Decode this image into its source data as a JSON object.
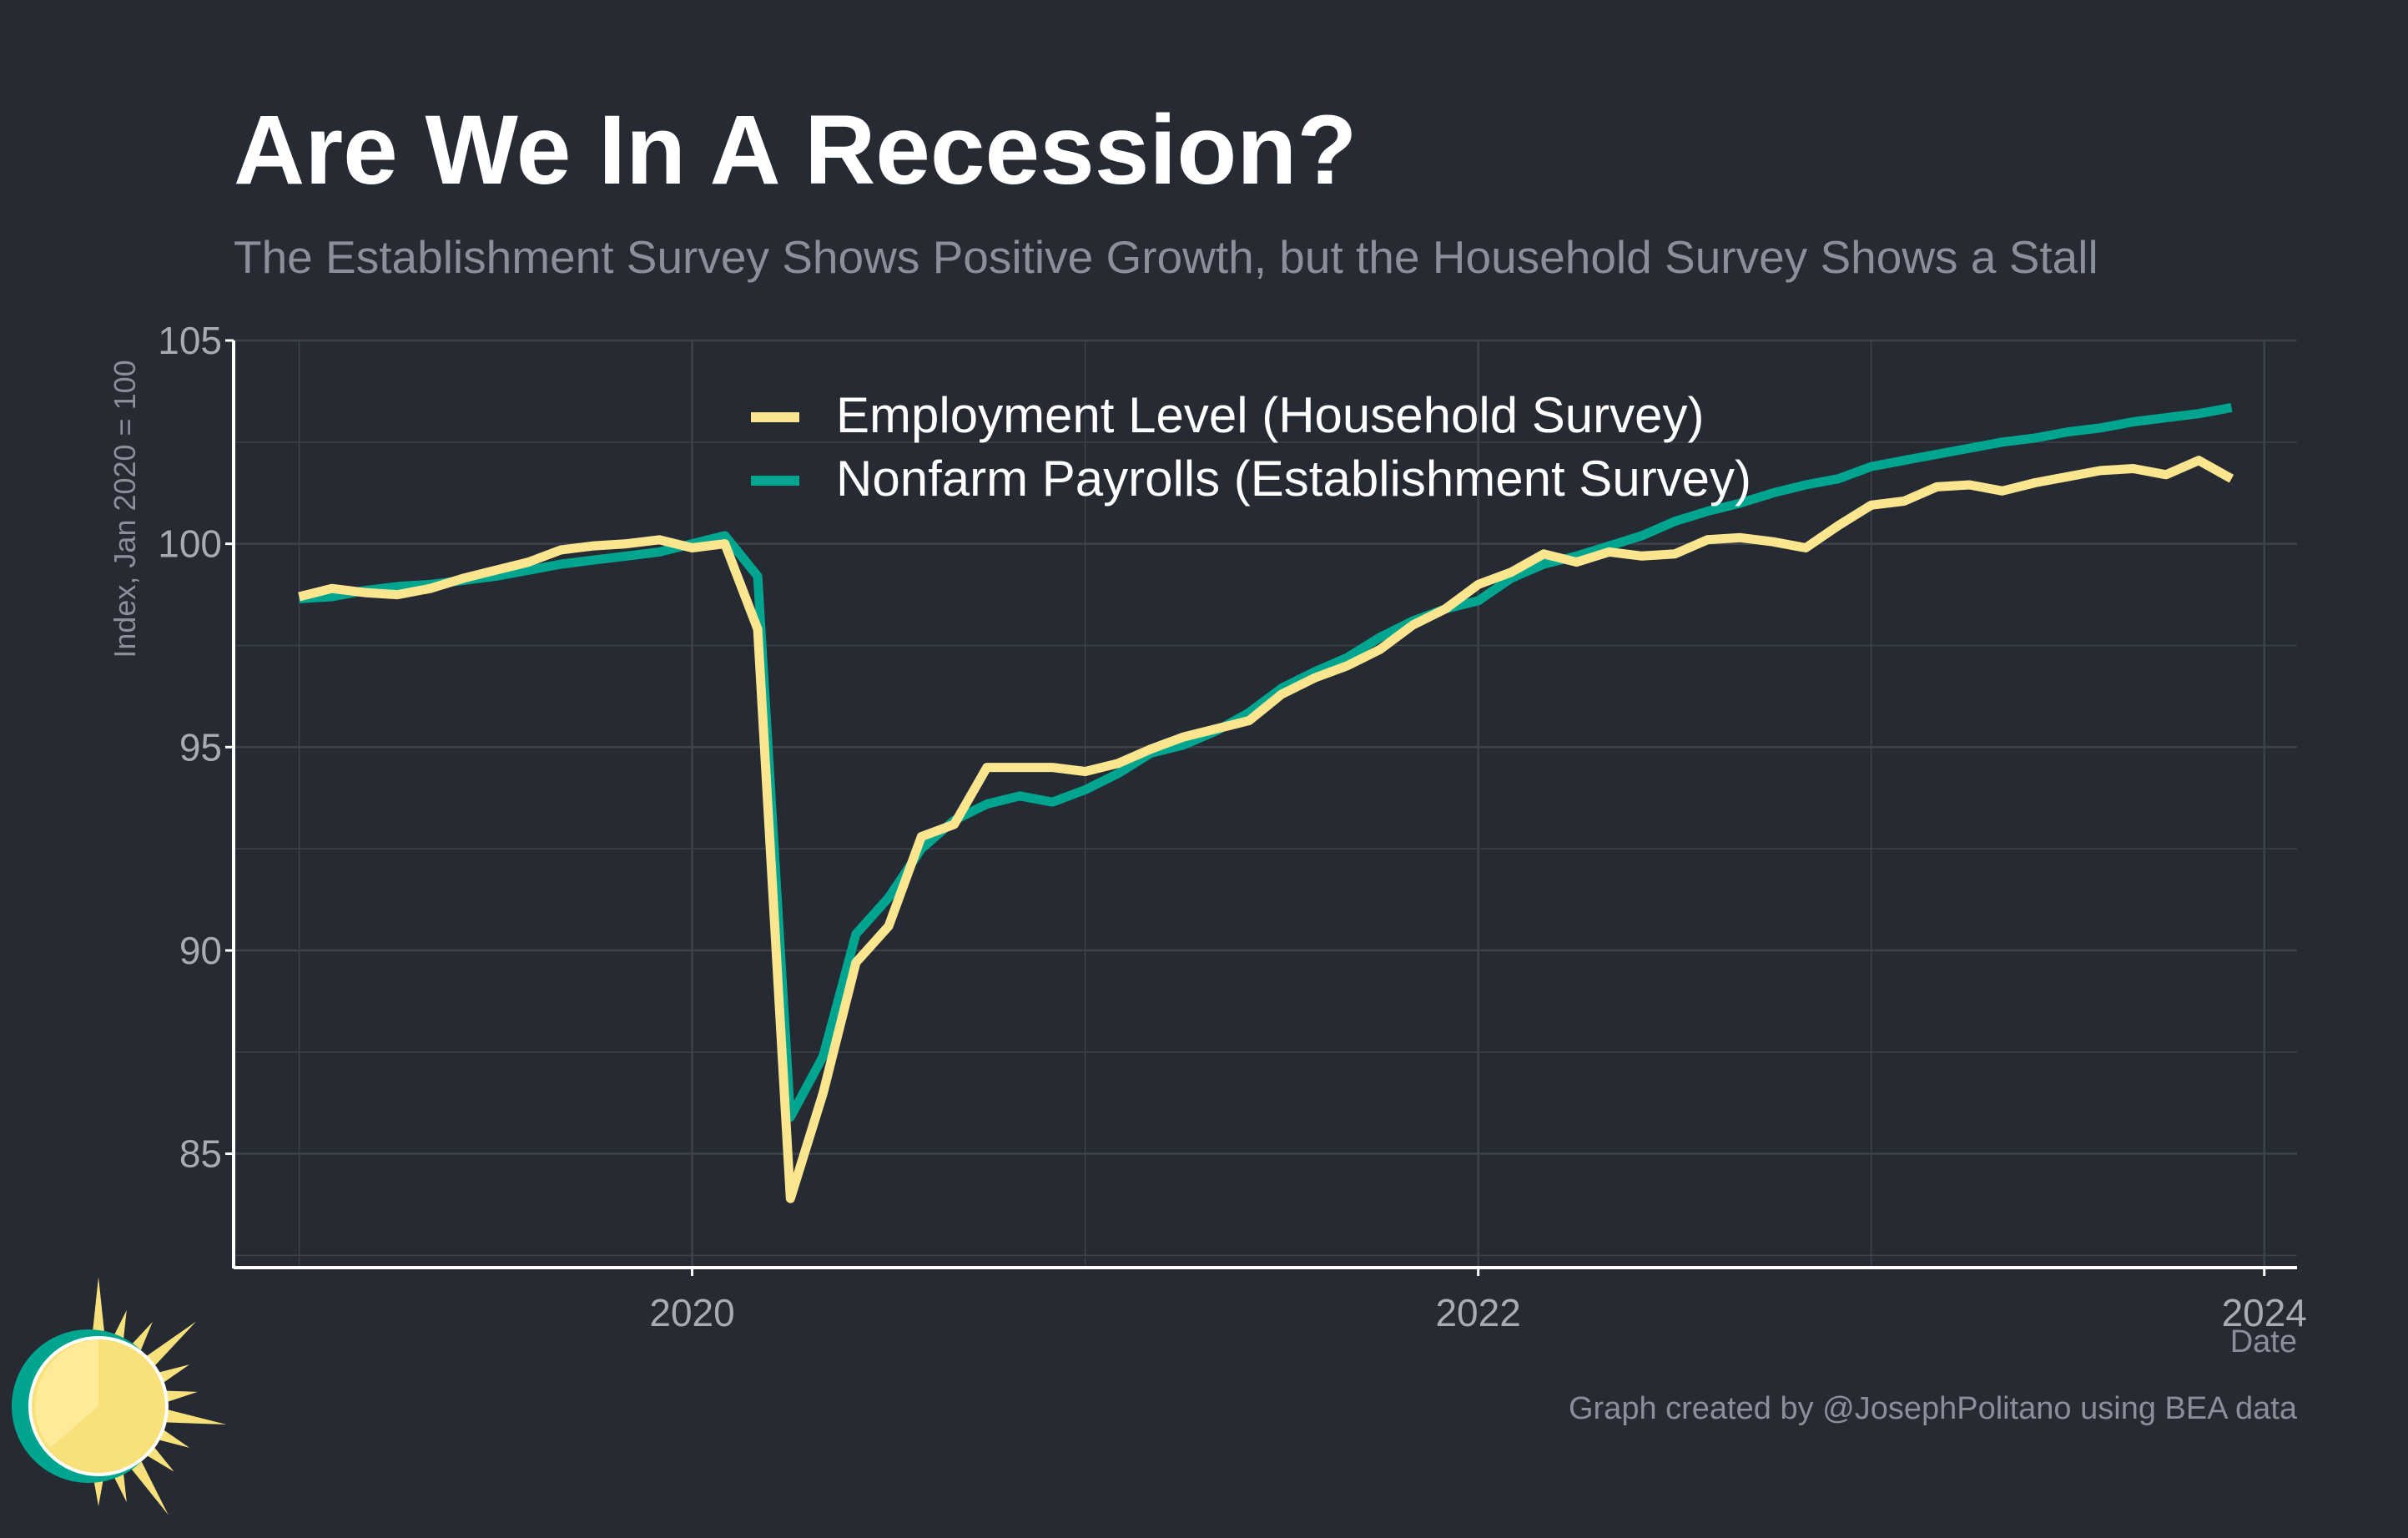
{
  "chart_data": {
    "type": "line",
    "title": "Are We In A Recession?",
    "subtitle": "The Establishment Survey Shows Positive Growth, but the Household Survey Shows a Stall",
    "xlabel": "Date",
    "ylabel": "Index, Jan 2020 = 100",
    "xlim": [
      "2018-11",
      "2024-02"
    ],
    "ylim": [
      82.2,
      105
    ],
    "x_ticks": [
      "2020",
      "2022",
      "2024"
    ],
    "y_ticks": [
      85,
      90,
      95,
      100,
      105
    ],
    "grid": true,
    "legend_position": "top-center",
    "x": [
      "2019-01",
      "2019-02",
      "2019-03",
      "2019-04",
      "2019-05",
      "2019-06",
      "2019-07",
      "2019-08",
      "2019-09",
      "2019-10",
      "2019-11",
      "2019-12",
      "2020-01",
      "2020-02",
      "2020-03",
      "2020-04",
      "2020-05",
      "2020-06",
      "2020-07",
      "2020-08",
      "2020-09",
      "2020-10",
      "2020-11",
      "2020-12",
      "2021-01",
      "2021-02",
      "2021-03",
      "2021-04",
      "2021-05",
      "2021-06",
      "2021-07",
      "2021-08",
      "2021-09",
      "2021-10",
      "2021-11",
      "2021-12",
      "2022-01",
      "2022-02",
      "2022-03",
      "2022-04",
      "2022-05",
      "2022-06",
      "2022-07",
      "2022-08",
      "2022-09",
      "2022-10",
      "2022-11",
      "2022-12",
      "2023-01",
      "2023-02",
      "2023-03",
      "2023-04",
      "2023-05",
      "2023-06",
      "2023-07",
      "2023-08",
      "2023-09",
      "2023-10",
      "2023-11",
      "2023-12"
    ],
    "series": [
      {
        "name": "Employment Level (Household Survey)",
        "color": "#fbe58f",
        "values": [
          98.7,
          98.9,
          98.8,
          98.75,
          98.9,
          99.15,
          99.35,
          99.55,
          99.85,
          99.95,
          100.0,
          100.1,
          99.9,
          100.0,
          97.9,
          83.9,
          86.5,
          89.7,
          90.6,
          92.8,
          93.1,
          94.5,
          94.5,
          94.5,
          94.4,
          94.6,
          94.95,
          95.25,
          95.45,
          95.65,
          96.3,
          96.7,
          97.0,
          97.4,
          98.0,
          98.4,
          99.0,
          99.3,
          99.75,
          99.55,
          99.8,
          99.7,
          99.75,
          100.1,
          100.15,
          100.05,
          99.9,
          100.45,
          100.95,
          101.05,
          101.4,
          101.45,
          101.3,
          101.5,
          101.65,
          101.8,
          101.85,
          101.7,
          102.05,
          101.6
        ]
      },
      {
        "name": "Nonfarm Payrolls (Establishment Survey)",
        "color": "#00a590",
        "values": [
          98.65,
          98.7,
          98.85,
          98.95,
          99.0,
          99.1,
          99.2,
          99.35,
          99.5,
          99.6,
          99.7,
          99.8,
          100.0,
          100.2,
          99.2,
          85.9,
          87.4,
          90.4,
          91.3,
          92.5,
          93.2,
          93.6,
          93.8,
          93.65,
          93.95,
          94.35,
          94.85,
          95.05,
          95.4,
          95.85,
          96.45,
          96.85,
          97.2,
          97.7,
          98.1,
          98.4,
          98.6,
          99.15,
          99.5,
          99.7,
          99.95,
          100.2,
          100.55,
          100.8,
          101.0,
          101.25,
          101.45,
          101.6,
          101.9,
          102.05,
          102.2,
          102.35,
          102.5,
          102.6,
          102.75,
          102.85,
          103.0,
          103.1,
          103.2,
          103.35
        ]
      }
    ],
    "caption": "Graph created by @JosephPolitano using BEA data"
  },
  "logo": {
    "icon": "sun-logo-icon",
    "colors": [
      "#00a590",
      "#f8e07a",
      "#fde68a"
    ]
  },
  "theme": {
    "background": "#252a33",
    "grid": "#3d424b",
    "axis": "#ffffff"
  }
}
